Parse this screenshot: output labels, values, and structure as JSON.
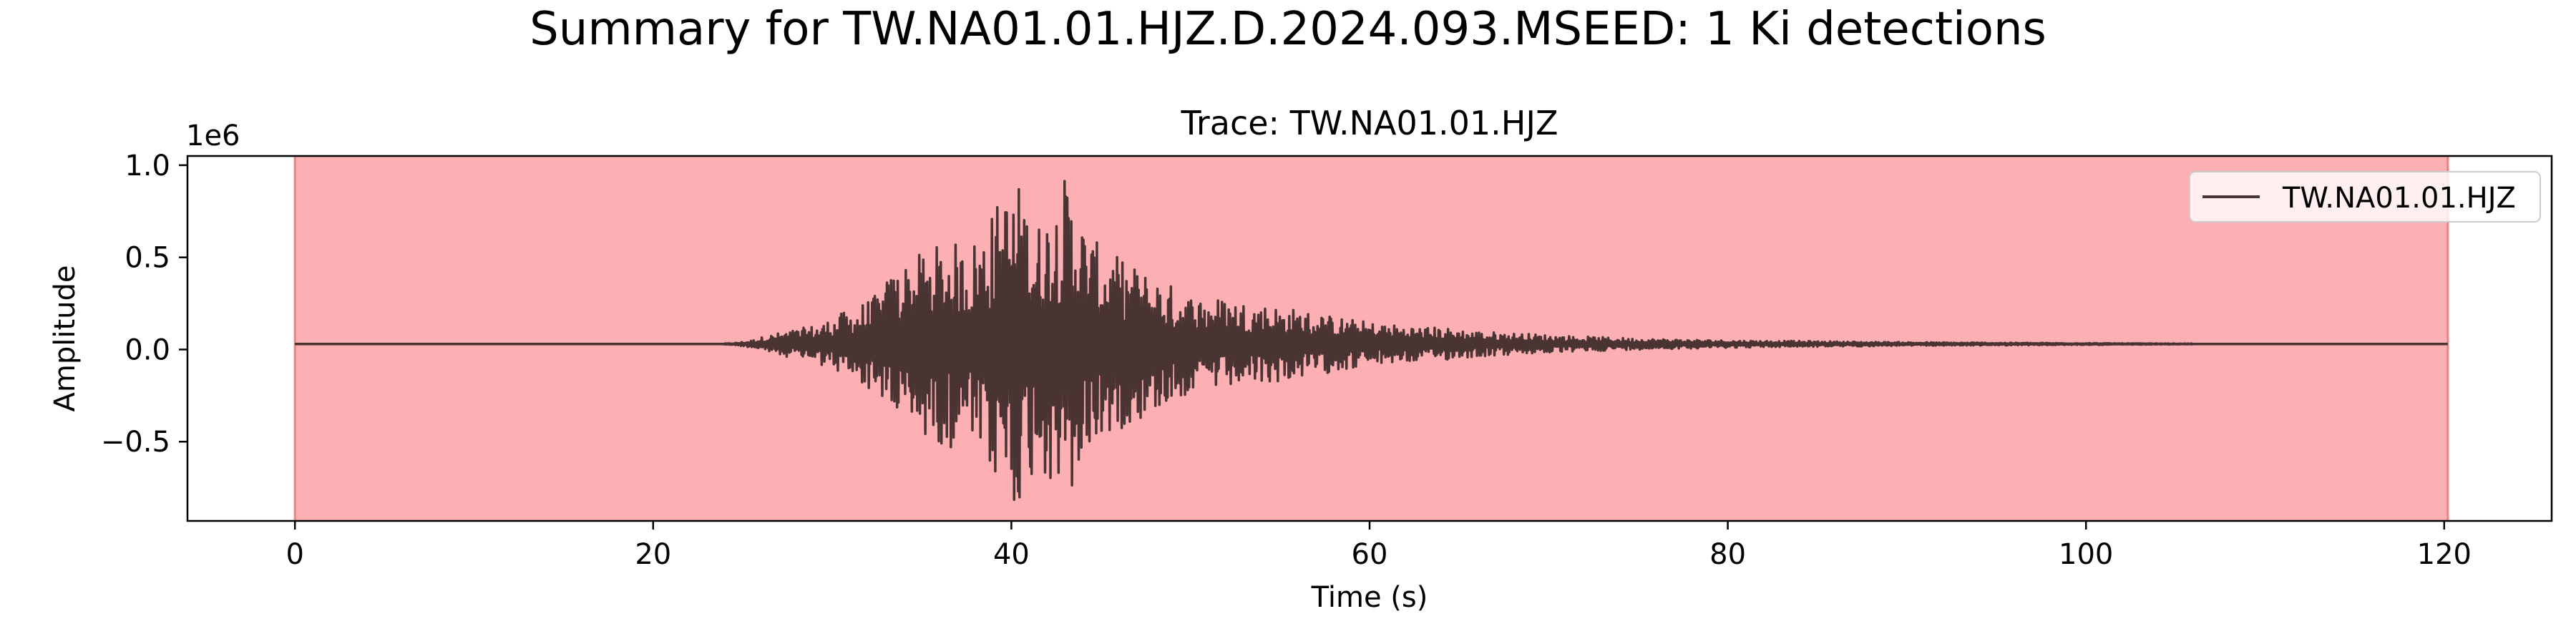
{
  "figure": {
    "suptitle": "Summary for TW.NA01.01.HJZ.D.2024.093.MSEED: 1 Ki detections"
  },
  "colors": {
    "trace": "#4a3333",
    "detection_fill": "#fdb0b3",
    "detection_edge": "#f08080",
    "axes": "#000000",
    "background": "#ffffff"
  },
  "chart_data": {
    "type": "line",
    "title": "Trace: TW.NA01.01.HJZ",
    "xlabel": "Time (s)",
    "ylabel": "Amplitude",
    "y_scale_label": "1e6",
    "xlim": [
      -6,
      126
    ],
    "ylim": [
      -0.93,
      1.05
    ],
    "x_ticks": [
      0,
      20,
      40,
      60,
      80,
      100,
      120
    ],
    "x_tick_labels": [
      "0",
      "20",
      "40",
      "60",
      "80",
      "100",
      "120"
    ],
    "y_ticks": [
      -0.5,
      0.0,
      0.5,
      1.0
    ],
    "y_tick_labels": [
      "−0.5",
      "0.0",
      "0.5",
      "1.0"
    ],
    "grid": false,
    "legend": {
      "placement": "top-right",
      "entries": [
        "TW.NA01.01.HJZ"
      ]
    },
    "detection_windows": [
      {
        "label": "Ki",
        "start": 0.0,
        "end": 120.2
      }
    ],
    "series": [
      {
        "name": "TW.NA01.01.HJZ",
        "baseline": 0.03,
        "points": [
          [
            0.0,
            0.03
          ],
          [
            23.5,
            0.03
          ],
          [
            24.5,
            0.035
          ],
          [
            25.5,
            0.05
          ],
          [
            26.5,
            0.08
          ],
          [
            27.5,
            0.1
          ],
          [
            28.5,
            0.12
          ],
          [
            29.5,
            0.15
          ],
          [
            31.0,
            0.22
          ],
          [
            32.5,
            0.3
          ],
          [
            33.5,
            0.45
          ],
          [
            34.5,
            0.5
          ],
          [
            35.5,
            0.55
          ],
          [
            36.5,
            0.6
          ],
          [
            37.5,
            0.55
          ],
          [
            38.5,
            0.7
          ],
          [
            39.3,
            0.82
          ],
          [
            40.3,
            0.93
          ],
          [
            41.5,
            0.7
          ],
          [
            43.1,
            0.96
          ],
          [
            44.5,
            0.6
          ],
          [
            46.0,
            0.5
          ],
          [
            48.0,
            0.4
          ],
          [
            50.0,
            0.3
          ],
          [
            52.0,
            0.28
          ],
          [
            54.0,
            0.25
          ],
          [
            56.0,
            0.22
          ],
          [
            58.0,
            0.18
          ],
          [
            60.0,
            0.15
          ],
          [
            62.0,
            0.13
          ],
          [
            64.0,
            0.12
          ],
          [
            66.0,
            0.1
          ],
          [
            68.0,
            0.09
          ],
          [
            70.0,
            0.08
          ],
          [
            72.0,
            0.07
          ],
          [
            75.0,
            0.06
          ],
          [
            80.0,
            0.05
          ],
          [
            90.0,
            0.04
          ],
          [
            100.0,
            0.035
          ],
          [
            110.0,
            0.03
          ],
          [
            120.2,
            0.03
          ]
        ]
      }
    ]
  }
}
